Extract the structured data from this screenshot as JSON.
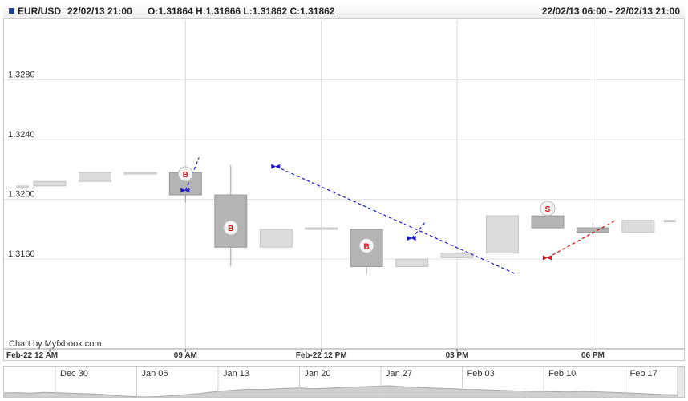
{
  "header": {
    "symbol": "EUR/USD",
    "time": "22/02/13 21:00",
    "ohlc": "O:1.31864 H:1.31866 L:1.31862 C:1.31862",
    "range": "22/02/13 06:00 - 22/02/13 21:00"
  },
  "credit": "Chart by Myfxbook.com",
  "colors": {
    "up_candle": "#dcdcdc",
    "down_candle": "#b4b4b4",
    "buy_line": "#1a1acc",
    "sell_line": "#dd1111",
    "marker_text": "#cc1111"
  },
  "chart_data": {
    "type": "candlestick",
    "ylim": [
      1.31,
      1.332
    ],
    "y_ticks": [
      "1.3160",
      "1.3200",
      "1.3240",
      "1.3280"
    ],
    "x_ticks": [
      "Feb-22 12 AM",
      "09 AM",
      "Feb-22 12 PM",
      "03 PM",
      "06 PM"
    ],
    "x_tick_slots": [
      0,
      3,
      6,
      9,
      12
    ],
    "grid": true,
    "candles": [
      {
        "slot": -0.6,
        "open": 1.3209,
        "high": 1.3209,
        "low": 1.3209,
        "close": 1.3209
      },
      {
        "slot": 0,
        "open": 1.3209,
        "high": 1.3212,
        "low": 1.3209,
        "close": 1.3212
      },
      {
        "slot": 1,
        "open": 1.3212,
        "high": 1.3218,
        "low": 1.3212,
        "close": 1.3218
      },
      {
        "slot": 2,
        "open": 1.3217,
        "high": 1.3218,
        "low": 1.3217,
        "close": 1.3218
      },
      {
        "slot": 3,
        "open": 1.3218,
        "high": 1.3218,
        "low": 1.3198,
        "close": 1.3203
      },
      {
        "slot": 4,
        "open": 1.3203,
        "high": 1.3223,
        "low": 1.3155,
        "close": 1.3168
      },
      {
        "slot": 5,
        "open": 1.3168,
        "high": 1.318,
        "low": 1.3168,
        "close": 1.318
      },
      {
        "slot": 6,
        "open": 1.318,
        "high": 1.3181,
        "low": 1.318,
        "close": 1.3181
      },
      {
        "slot": 7,
        "open": 1.318,
        "high": 1.318,
        "low": 1.315,
        "close": 1.3155
      },
      {
        "slot": 8,
        "open": 1.3155,
        "high": 1.316,
        "low": 1.3155,
        "close": 1.316
      },
      {
        "slot": 9,
        "open": 1.3161,
        "high": 1.3164,
        "low": 1.3161,
        "close": 1.3164
      },
      {
        "slot": 10,
        "open": 1.3164,
        "high": 1.3189,
        "low": 1.3164,
        "close": 1.3189
      },
      {
        "slot": 11,
        "open": 1.3189,
        "high": 1.3189,
        "low": 1.3181,
        "close": 1.3181
      },
      {
        "slot": 12,
        "open": 1.3181,
        "high": 1.3184,
        "low": 1.3177,
        "close": 1.3178
      },
      {
        "slot": 13,
        "open": 1.3178,
        "high": 1.3186,
        "low": 1.3178,
        "close": 1.3186
      },
      {
        "slot": 13.7,
        "open": 1.3186,
        "high": 1.3186,
        "low": 1.3186,
        "close": 1.3186
      }
    ],
    "trades": [
      {
        "type": "buy",
        "label": "B",
        "from": {
          "slot": 3.0,
          "price": 1.3206
        },
        "to": {
          "slot": 3.3,
          "price": 1.3228
        }
      },
      {
        "type": "buy",
        "label": "B",
        "from": {
          "slot": 5.0,
          "price": 1.3222
        },
        "to": {
          "slot": 10.3,
          "price": 1.315
        }
      },
      {
        "type": "buy",
        "label": "B",
        "from": {
          "slot": 8.0,
          "price": 1.3174
        },
        "to": {
          "slot": 8.3,
          "price": 1.3185
        }
      },
      {
        "type": "sell",
        "label": "S",
        "from": {
          "slot": 11.0,
          "price": 1.3161
        },
        "to": {
          "slot": 12.5,
          "price": 1.3186
        }
      }
    ],
    "markers": [
      {
        "label": "B",
        "slot": 3.0,
        "price": 1.3217
      },
      {
        "label": "B",
        "slot": 4.0,
        "price": 1.3181
      },
      {
        "label": "B",
        "slot": 7.0,
        "price": 1.3169
      },
      {
        "label": "S",
        "slot": 11.0,
        "price": 1.3194
      }
    ]
  },
  "navigator": {
    "labels": [
      "Dec 30",
      "Jan 06",
      "Jan 13",
      "Jan 20",
      "Jan 27",
      "Feb 03",
      "Feb 10",
      "Feb 17"
    ],
    "series": [
      1.329,
      1.33,
      1.328,
      1.331,
      1.33,
      1.328,
      1.326,
      1.324,
      1.32,
      1.315,
      1.312,
      1.31,
      1.312,
      1.316,
      1.32,
      1.325,
      1.332,
      1.338,
      1.342,
      1.346,
      1.344,
      1.347,
      1.35,
      1.352,
      1.348,
      1.35,
      1.353,
      1.356,
      1.358,
      1.36,
      1.362,
      1.358,
      1.355,
      1.352,
      1.35,
      1.348,
      1.345,
      1.344,
      1.342,
      1.34,
      1.338,
      1.336,
      1.335,
      1.334,
      1.333,
      1.336,
      1.334,
      1.332,
      1.33,
      1.328,
      1.325,
      1.322,
      1.32,
      1.3186
    ]
  }
}
